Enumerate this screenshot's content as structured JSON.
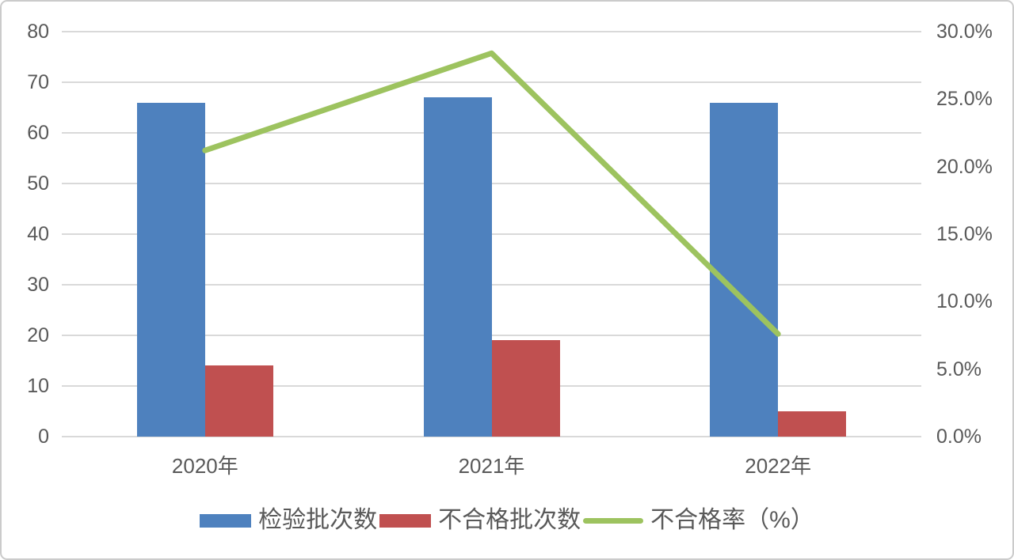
{
  "window": {
    "background": "#ffffff",
    "border_color": "#cbcbcb"
  },
  "chart_data": {
    "type": "bar",
    "subtype": "combo-bar-line",
    "title": "",
    "xlabel": "",
    "ylabel": "",
    "grid": true,
    "gridline_color": "#d9d9d9",
    "tick_color": "#595959",
    "legend_position": "bottom",
    "categories": [
      "2020年",
      "2021年",
      "2022年"
    ],
    "series": [
      {
        "key": "inspection-batches",
        "name": "检验批次数",
        "type": "bar",
        "axis": "left",
        "color": "#4e81be",
        "values": [
          66,
          67,
          66
        ]
      },
      {
        "key": "unqualified-batches",
        "name": "不合格批次数",
        "type": "bar",
        "axis": "left",
        "color": "#c05050",
        "values": [
          14,
          19,
          5
        ]
      },
      {
        "key": "unqualified-rate",
        "name": "不合格率（%）",
        "type": "line",
        "axis": "right",
        "color": "#9dc35f",
        "values": [
          21.2,
          28.4,
          7.6
        ]
      }
    ],
    "left_axis": {
      "min": 0,
      "max": 80,
      "step": 10,
      "tick_labels": [
        "0",
        "10",
        "20",
        "30",
        "40",
        "50",
        "60",
        "70",
        "80"
      ]
    },
    "right_axis": {
      "min": 0,
      "max": 30,
      "step": 5,
      "tick_labels": [
        "0.0%",
        "5.0%",
        "10.0%",
        "15.0%",
        "20.0%",
        "25.0%",
        "30.0%"
      ]
    }
  }
}
